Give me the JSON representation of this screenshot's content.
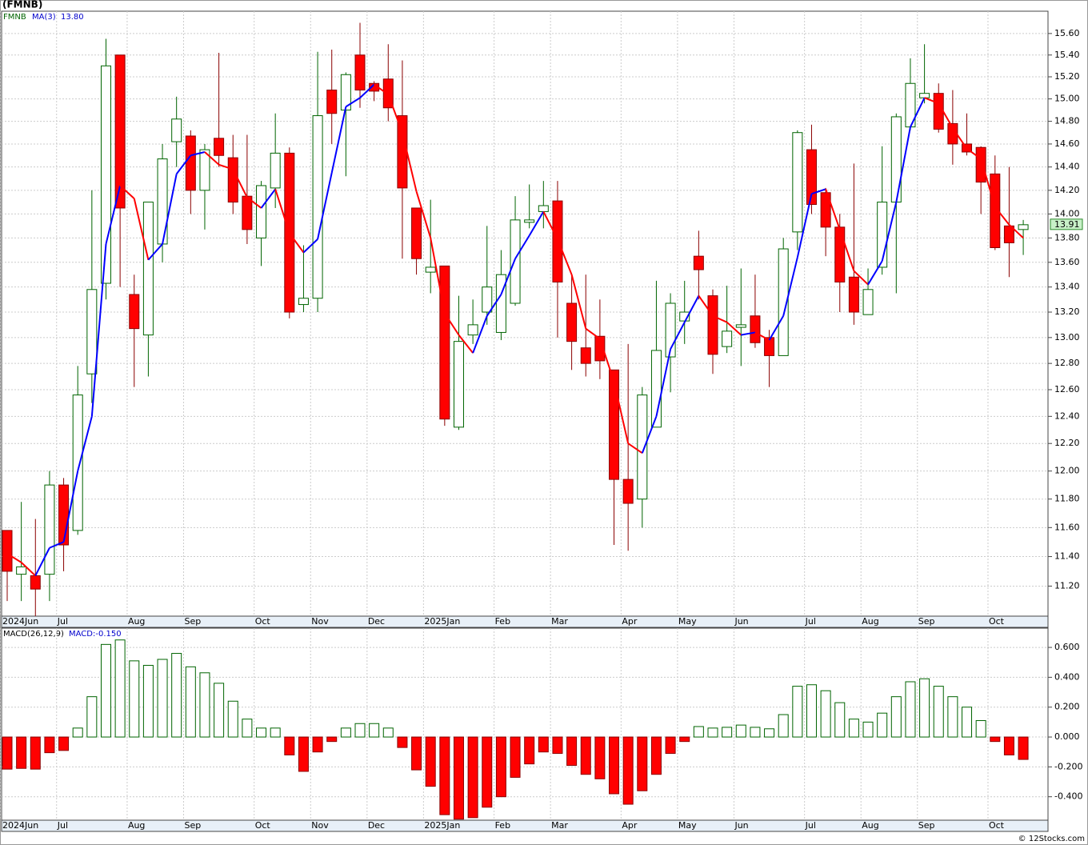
{
  "chart_data": [
    {
      "type": "candlestick",
      "title": "(FMNB)",
      "symbol": "FMNB",
      "ma_name": "MA(3)",
      "ma_label": "13.80",
      "last_label": "13.91",
      "log_scale": true,
      "grid": true,
      "up_color": "#ffffff",
      "up_edge": "#006400",
      "down_color": "#ff0000",
      "down_edge": "#8b0000",
      "rise_color": "#0000ff",
      "fall_color": "#ff0000",
      "label_box_color": "#c8f0c8",
      "categories": [
        "2024Jun",
        null,
        null,
        null,
        "Jul",
        null,
        null,
        null,
        null,
        "Aug",
        null,
        null,
        null,
        "Sep",
        null,
        null,
        null,
        null,
        "Oct",
        null,
        null,
        null,
        "Nov",
        null,
        null,
        null,
        "Dec",
        null,
        null,
        null,
        "2025Jan",
        null,
        null,
        null,
        null,
        "Feb",
        null,
        null,
        null,
        "Mar",
        null,
        null,
        null,
        null,
        "Apr",
        null,
        null,
        null,
        "May",
        null,
        null,
        null,
        "Jun",
        null,
        null,
        null,
        null,
        "Jul",
        null,
        null,
        null,
        "Aug",
        null,
        null,
        null,
        "Sep",
        null,
        null,
        null,
        null,
        "Oct",
        null,
        null
      ],
      "open": [
        11.58,
        11.28,
        11.27,
        11.28,
        11.9,
        11.58,
        12.72,
        13.43,
        15.4,
        13.34,
        13.02,
        13.75,
        14.62,
        14.67,
        14.2,
        14.65,
        14.48,
        14.15,
        13.8,
        14.22,
        14.52,
        13.26,
        13.31,
        15.08,
        14.9,
        15.4,
        15.14,
        15.18,
        14.85,
        14.05,
        13.52,
        13.57,
        12.32,
        13.02,
        13.2,
        13.04,
        13.27,
        13.93,
        14.02,
        14.11,
        13.27,
        12.92,
        13.01,
        12.75,
        11.94,
        11.8,
        12.32,
        12.85,
        13.13,
        13.65,
        13.33,
        12.93,
        13.08,
        13.17,
        13.0,
        12.86,
        13.85,
        14.55,
        14.18,
        13.89,
        13.48,
        13.18,
        13.56,
        14.1,
        14.75,
        15.01,
        15.05,
        14.78,
        14.6,
        14.57,
        14.34,
        13.9,
        13.87
      ],
      "high": [
        11.58,
        11.78,
        11.66,
        12.0,
        11.95,
        12.78,
        14.2,
        15.55,
        15.4,
        13.5,
        14.1,
        14.6,
        15.02,
        14.72,
        14.6,
        15.42,
        14.68,
        14.68,
        14.28,
        14.87,
        14.57,
        13.74,
        15.43,
        15.45,
        15.24,
        15.7,
        15.16,
        15.5,
        15.35,
        14.05,
        14.12,
        13.57,
        13.33,
        13.3,
        13.9,
        13.7,
        14.15,
        14.25,
        14.28,
        14.28,
        13.5,
        13.5,
        13.3,
        12.75,
        12.95,
        12.62,
        13.45,
        13.35,
        13.45,
        13.86,
        13.38,
        13.41,
        13.55,
        13.5,
        13.06,
        13.8,
        14.72,
        14.77,
        14.22,
        14.0,
        14.43,
        13.55,
        14.58,
        14.87,
        15.37,
        15.5,
        15.14,
        15.08,
        14.87,
        14.58,
        14.5,
        14.4,
        13.95
      ],
      "low": [
        11.1,
        11.1,
        11.0,
        11.1,
        11.3,
        11.55,
        12.5,
        13.3,
        13.4,
        12.62,
        12.7,
        13.6,
        14.4,
        14.0,
        13.87,
        14.4,
        14.0,
        13.75,
        13.57,
        14.05,
        13.15,
        13.2,
        13.2,
        14.6,
        14.32,
        14.92,
        14.98,
        14.8,
        13.63,
        13.5,
        13.35,
        12.33,
        12.3,
        12.95,
        13.1,
        12.98,
        13.25,
        13.88,
        13.88,
        13.0,
        12.75,
        12.7,
        12.68,
        11.48,
        11.44,
        11.6,
        12.32,
        12.58,
        12.95,
        13.3,
        12.72,
        12.88,
        12.78,
        12.92,
        12.62,
        12.86,
        13.7,
        14.0,
        13.65,
        13.2,
        13.1,
        13.18,
        13.5,
        13.35,
        14.72,
        14.96,
        14.7,
        14.42,
        14.5,
        14.0,
        13.7,
        13.48,
        13.66
      ],
      "close": [
        11.3,
        11.33,
        11.18,
        11.9,
        11.48,
        12.56,
        13.38,
        15.3,
        14.05,
        13.07,
        14.1,
        14.47,
        14.82,
        14.2,
        14.55,
        14.5,
        14.1,
        13.87,
        14.24,
        14.52,
        13.2,
        13.31,
        14.85,
        14.87,
        15.22,
        15.08,
        15.07,
        14.92,
        14.22,
        13.63,
        13.56,
        12.38,
        12.97,
        13.1,
        13.4,
        13.5,
        13.95,
        13.95,
        14.07,
        13.44,
        12.97,
        12.8,
        12.82,
        11.94,
        11.77,
        12.56,
        12.9,
        13.27,
        13.2,
        13.54,
        12.87,
        13.05,
        13.1,
        12.96,
        12.86,
        13.71,
        14.7,
        14.08,
        13.89,
        13.44,
        13.2,
        13.38,
        14.1,
        14.84,
        15.14,
        15.05,
        14.73,
        14.6,
        14.53,
        14.27,
        13.72,
        13.76,
        13.91
      ],
      "ma": [
        11.42,
        11.36,
        11.27,
        11.46,
        11.5,
        12.0,
        12.4,
        13.75,
        14.24,
        14.13,
        13.62,
        13.75,
        14.34,
        14.5,
        14.53,
        14.42,
        14.38,
        14.14,
        14.05,
        14.21,
        13.84,
        13.68,
        13.79,
        14.35,
        14.93,
        15.01,
        15.13,
        15.04,
        14.7,
        14.19,
        13.8,
        13.19,
        13.02,
        12.88,
        13.17,
        13.34,
        13.63,
        13.82,
        14.02,
        13.79,
        13.5,
        13.07,
        12.99,
        12.66,
        12.2,
        12.13,
        12.4,
        12.91,
        13.12,
        13.33,
        13.17,
        13.12,
        13.02,
        13.04,
        12.98,
        13.17,
        13.64,
        14.17,
        14.21,
        13.87,
        13.53,
        13.42,
        13.61,
        14.1,
        14.75,
        15.01,
        14.96,
        14.74,
        14.56,
        14.47,
        14.06,
        13.91,
        13.8
      ],
      "ylim": [
        11.0,
        15.81
      ],
      "yticks": [
        {
          "value": 11.2,
          "label": "11.20"
        },
        {
          "value": 11.4,
          "label": "11.40"
        },
        {
          "value": 11.6,
          "label": "11.60"
        },
        {
          "value": 11.8,
          "label": "11.80"
        },
        {
          "value": 12.0,
          "label": "12.00"
        },
        {
          "value": 12.2,
          "label": "12.20"
        },
        {
          "value": 12.4,
          "label": "12.40"
        },
        {
          "value": 12.6,
          "label": "12.60"
        },
        {
          "value": 12.8,
          "label": "12.80"
        },
        {
          "value": 13.0,
          "label": "13.00"
        },
        {
          "value": 13.2,
          "label": "13.20"
        },
        {
          "value": 13.4,
          "label": "13.40"
        },
        {
          "value": 13.6,
          "label": "13.60"
        },
        {
          "value": 13.8,
          "label": "13.80"
        },
        {
          "value": 14.0,
          "label": "14.00"
        },
        {
          "value": 14.2,
          "label": "14.20"
        },
        {
          "value": 14.4,
          "label": "14.40"
        },
        {
          "value": 14.6,
          "label": "14.60"
        },
        {
          "value": 14.8,
          "label": "14.80"
        },
        {
          "value": 15.0,
          "label": "15.00"
        },
        {
          "value": 15.2,
          "label": "15.20"
        },
        {
          "value": 15.4,
          "label": "15.40"
        },
        {
          "value": 15.6,
          "label": "15.60"
        }
      ]
    },
    {
      "type": "bar",
      "title": "MACD(26,12,9)",
      "value_title": "MACD:-0.150",
      "grid": true,
      "pos_color": "#ffffff",
      "pos_edge": "#006400",
      "neg_color": "#ff0000",
      "neg_edge": "#8b0000",
      "categories": [
        "2024Jun",
        null,
        null,
        null,
        "Jul",
        null,
        null,
        null,
        null,
        "Aug",
        null,
        null,
        null,
        "Sep",
        null,
        null,
        null,
        null,
        "Oct",
        null,
        null,
        null,
        "Nov",
        null,
        null,
        null,
        "Dec",
        null,
        null,
        null,
        "2025Jan",
        null,
        null,
        null,
        null,
        "Feb",
        null,
        null,
        null,
        "Mar",
        null,
        null,
        null,
        null,
        "Apr",
        null,
        null,
        null,
        "May",
        null,
        null,
        null,
        "Jun",
        null,
        null,
        null,
        null,
        "Jul",
        null,
        null,
        null,
        "Aug",
        null,
        null,
        null,
        "Sep",
        null,
        null,
        null,
        null,
        "Oct",
        null,
        null
      ],
      "values": [
        -0.215,
        -0.21,
        -0.215,
        -0.105,
        -0.09,
        0.06,
        0.27,
        0.62,
        0.65,
        0.51,
        0.48,
        0.52,
        0.56,
        0.47,
        0.43,
        0.36,
        0.24,
        0.12,
        0.06,
        0.06,
        -0.12,
        -0.23,
        -0.1,
        -0.03,
        0.06,
        0.09,
        0.09,
        0.06,
        -0.07,
        -0.22,
        -0.33,
        -0.52,
        -0.55,
        -0.54,
        -0.47,
        -0.4,
        -0.27,
        -0.18,
        -0.1,
        -0.11,
        -0.19,
        -0.25,
        -0.28,
        -0.38,
        -0.45,
        -0.36,
        -0.25,
        -0.11,
        -0.03,
        0.07,
        0.06,
        0.065,
        0.08,
        0.065,
        0.055,
        0.15,
        0.34,
        0.35,
        0.31,
        0.23,
        0.12,
        0.1,
        0.16,
        0.27,
        0.37,
        0.39,
        0.34,
        0.27,
        0.2,
        0.11,
        -0.03,
        -0.12,
        -0.15
      ],
      "ylim": [
        -0.557,
        0.729
      ],
      "yticks": [
        {
          "value": -0.4,
          "label": "-0.400"
        },
        {
          "value": -0.2,
          "label": "-0.200"
        },
        {
          "value": 0,
          "label": "0.000"
        },
        {
          "value": 0.2,
          "label": "0.200"
        },
        {
          "value": 0.4,
          "label": "0.400"
        },
        {
          "value": 0.6,
          "label": "0.600"
        }
      ]
    }
  ],
  "footer": "© 12Stocks.com"
}
